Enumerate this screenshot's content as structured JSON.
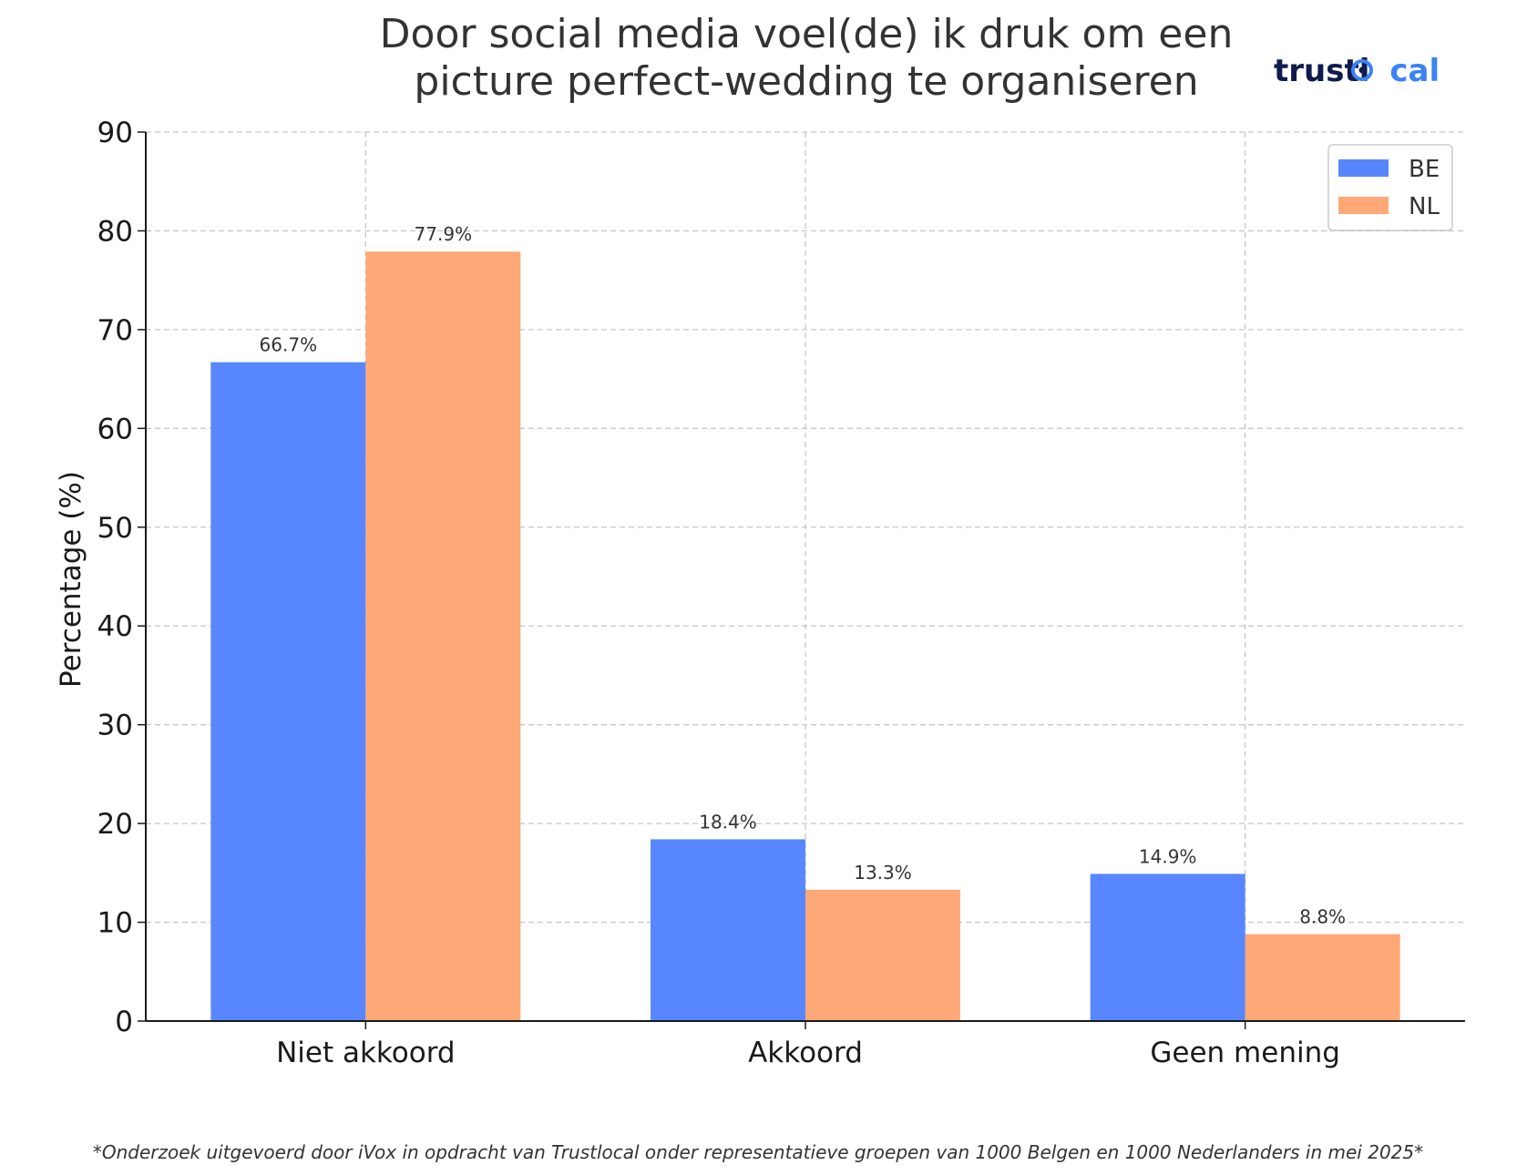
{
  "chart_data": {
    "type": "bar",
    "title_lines": [
      "Door social media voel(de) ik druk om een",
      "picture perfect-wedding te organiseren"
    ],
    "ylabel": "Percentage (%)",
    "xlabel": "",
    "ylim": [
      0,
      90
    ],
    "yticks": [
      0,
      10,
      20,
      30,
      40,
      50,
      60,
      70,
      80,
      90
    ],
    "grid": true,
    "legend_position": "top-right",
    "categories": [
      "Niet akkoord",
      "Akkoord",
      "Geen mening"
    ],
    "series": [
      {
        "name": "BE",
        "color": "#5886fe",
        "values": [
          66.7,
          18.4,
          14.9
        ],
        "labels": [
          "66.7%",
          "18.4%",
          "14.9%"
        ]
      },
      {
        "name": "NL",
        "color": "#fea877",
        "values": [
          77.9,
          13.3,
          8.8
        ],
        "labels": [
          "77.9%",
          "13.3%",
          "8.8%"
        ]
      }
    ]
  },
  "logo": {
    "part1": "trustl",
    "part2": "cal"
  },
  "footnote": "*Onderzoek uitgevoerd door iVox in opdracht van Trustlocal onder representatieve groepen van 1000 Belgen en 1000 Nederlanders in mei 2025*"
}
